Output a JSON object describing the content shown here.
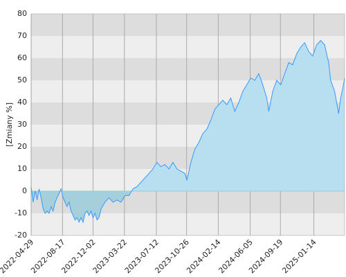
{
  "chart_data": {
    "type": "area",
    "y_label": "[Zmiany %]",
    "x": [
      "2022-04-29",
      "2022-05-06",
      "2022-05-13",
      "2022-05-20",
      "2022-05-27",
      "2022-06-03",
      "2022-06-10",
      "2022-06-17",
      "2022-06-24",
      "2022-07-01",
      "2022-07-08",
      "2022-07-15",
      "2022-07-22",
      "2022-07-29",
      "2022-08-05",
      "2022-08-12",
      "2022-08-19",
      "2022-08-26",
      "2022-09-02",
      "2022-09-09",
      "2022-09-16",
      "2022-09-23",
      "2022-09-30",
      "2022-10-07",
      "2022-10-14",
      "2022-10-21",
      "2022-10-28",
      "2022-11-04",
      "2022-11-11",
      "2022-11-18",
      "2022-11-25",
      "2022-12-02",
      "2022-12-09",
      "2022-12-16",
      "2022-12-23",
      "2022-12-30",
      "2023-01-13",
      "2023-01-27",
      "2023-02-10",
      "2023-02-24",
      "2023-03-10",
      "2023-03-24",
      "2023-04-07",
      "2023-04-21",
      "2023-05-05",
      "2023-05-19",
      "2023-06-02",
      "2023-06-16",
      "2023-06-30",
      "2023-07-14",
      "2023-07-28",
      "2023-08-11",
      "2023-08-25",
      "2023-09-08",
      "2023-09-22",
      "2023-10-06",
      "2023-10-20",
      "2023-10-27",
      "2023-11-10",
      "2023-11-24",
      "2023-12-08",
      "2023-12-22",
      "2024-01-05",
      "2024-01-19",
      "2024-02-02",
      "2024-02-16",
      "2024-03-01",
      "2024-03-15",
      "2024-03-29",
      "2024-04-12",
      "2024-04-26",
      "2024-05-10",
      "2024-05-24",
      "2024-06-07",
      "2024-06-21",
      "2024-07-05",
      "2024-07-19",
      "2024-08-02",
      "2024-08-09",
      "2024-08-23",
      "2024-09-06",
      "2024-09-20",
      "2024-10-04",
      "2024-10-18",
      "2024-11-01",
      "2024-11-15",
      "2024-11-29",
      "2024-12-13",
      "2024-12-27",
      "2025-01-10",
      "2025-01-24",
      "2025-02-07",
      "2025-02-21",
      "2025-03-07",
      "2025-03-14",
      "2025-03-28",
      "2025-04-04",
      "2025-04-11",
      "2025-04-18",
      "2025-04-25",
      "2025-05-02"
    ],
    "series": [
      {
        "name": "Zmiany",
        "color": "#3399ff",
        "values": [
          2,
          -5,
          0,
          -4,
          1,
          -3,
          -8,
          -10,
          -9,
          -10,
          -7,
          -9,
          -5,
          -3,
          -1,
          1,
          -3,
          -5,
          -7,
          -5,
          -9,
          -11,
          -13,
          -12,
          -14,
          -12,
          -14,
          -10,
          -9,
          -11,
          -9,
          -12,
          -10,
          -13,
          -12,
          -8,
          -5,
          -3,
          -5,
          -4,
          -5,
          -2,
          -2,
          1,
          2,
          4,
          6,
          8,
          10,
          13,
          11,
          12,
          10,
          13,
          10,
          9,
          8,
          5,
          13,
          19,
          22,
          26,
          28,
          32,
          37,
          39,
          41,
          39,
          42,
          36,
          40,
          45,
          48,
          51,
          50,
          53,
          48,
          42,
          36,
          45,
          50,
          48,
          53,
          58,
          57,
          62,
          65,
          67,
          63,
          61,
          66,
          68,
          66,
          58,
          50,
          45,
          40,
          35,
          42,
          46,
          51
        ]
      }
    ],
    "xlim": [
      "2022-04-29",
      "2025-05-02"
    ],
    "xticks": [
      "2022-04-29",
      "2022-08-17",
      "2022-12-02",
      "2023-03-22",
      "2023-07-12",
      "2023-10-26",
      "2024-02-14",
      "2024-06-05",
      "2024-09-19",
      "2025-01-14"
    ],
    "ylim": [
      -20,
      80
    ],
    "yticks": [
      -20,
      -10,
      0,
      10,
      20,
      30,
      40,
      50,
      60,
      70,
      80
    ],
    "grid": true
  }
}
